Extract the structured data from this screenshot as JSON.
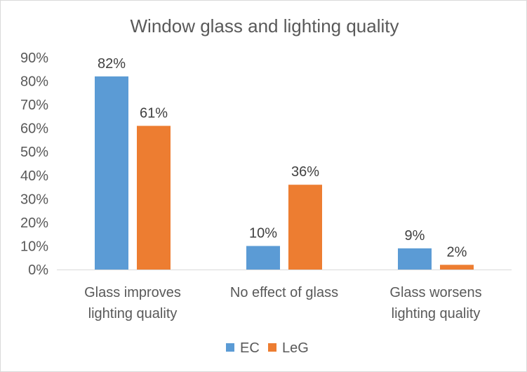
{
  "chart_data": {
    "type": "bar",
    "title": "Window glass and lighting quality",
    "categories": [
      [
        "Glass improves",
        "lighting quality"
      ],
      [
        "No effect of glass"
      ],
      [
        "Glass worsens",
        "lighting quality"
      ]
    ],
    "series": [
      {
        "name": "EC",
        "values": [
          82,
          10,
          9
        ],
        "labels": [
          "82%",
          "10%",
          "9%"
        ],
        "color": "#5B9BD5"
      },
      {
        "name": "LeG",
        "values": [
          61,
          36,
          2
        ],
        "labels": [
          "61%",
          "36%",
          "2%"
        ],
        "color": "#ED7D31"
      }
    ],
    "ylim": [
      0,
      90
    ],
    "yticks": [
      0,
      10,
      20,
      30,
      40,
      50,
      60,
      70,
      80,
      90
    ],
    "ytick_labels": [
      "0%",
      "10%",
      "20%",
      "30%",
      "40%",
      "50%",
      "60%",
      "70%",
      "80%",
      "90%"
    ],
    "xlabel": "",
    "ylabel": "",
    "grid": false,
    "legend": "bottom",
    "axis_color": "#d9d9d9"
  }
}
